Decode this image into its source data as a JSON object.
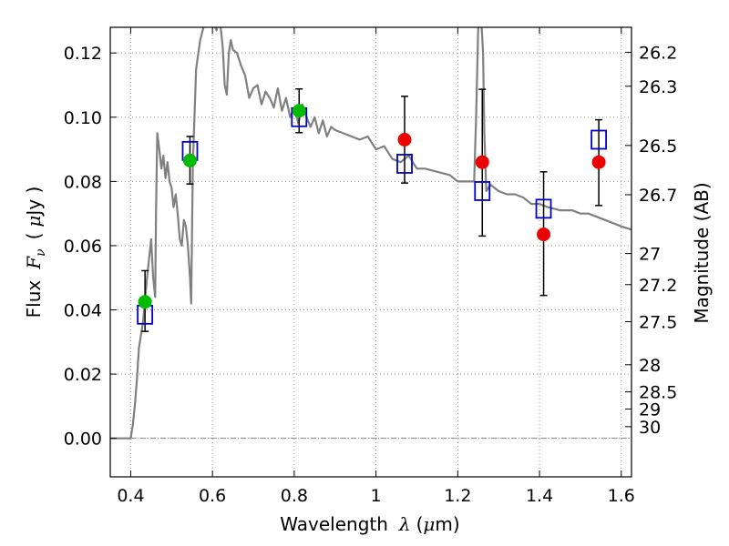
{
  "chart_data": {
    "type": "scatter",
    "xlabel_text": "Wavelength",
    "xlabel_symbol": "λ",
    "xlabel_unit_open": "(",
    "xlabel_unit_mu": "μ",
    "xlabel_unit_rest": "m)",
    "ylabel_text": "Flux",
    "ylabel_symbol": "F",
    "ylabel_sub": "ν",
    "ylabel_unit_open": "(",
    "ylabel_unit_mu": "μ",
    "ylabel_unit_rest": "Jy )",
    "y2label": "Magnitude (AB)",
    "xlim": [
      0.35,
      1.625
    ],
    "ylim": [
      -0.012,
      0.128
    ],
    "grid": true,
    "x_ticks": [
      {
        "value": 0.4,
        "label": "0.4"
      },
      {
        "value": 0.6,
        "label": "0.6"
      },
      {
        "value": 0.8,
        "label": "0.8"
      },
      {
        "value": 1.0,
        "label": "1"
      },
      {
        "value": 1.2,
        "label": "1.2"
      },
      {
        "value": 1.4,
        "label": "1.4"
      },
      {
        "value": 1.6,
        "label": "1.6"
      }
    ],
    "y_ticks": [
      {
        "value": 0.0,
        "label": "0.00"
      },
      {
        "value": 0.02,
        "label": "0.02"
      },
      {
        "value": 0.04,
        "label": "0.04"
      },
      {
        "value": 0.06,
        "label": "0.06"
      },
      {
        "value": 0.08,
        "label": "0.08"
      },
      {
        "value": 0.1,
        "label": "0.10"
      },
      {
        "value": 0.12,
        "label": "0.12"
      }
    ],
    "mag_ticks": [
      {
        "mag": 26.2,
        "label": "26.2"
      },
      {
        "mag": 26.3,
        "label": "26.3"
      },
      {
        "mag": 26.5,
        "label": "26.5"
      },
      {
        "mag": 26.7,
        "label": "26.7"
      },
      {
        "mag": 27.0,
        "label": "27"
      },
      {
        "mag": 27.2,
        "label": "27.2"
      },
      {
        "mag": 27.5,
        "label": "27.5"
      },
      {
        "mag": 28.0,
        "label": "28"
      },
      {
        "mag": 28.5,
        "label": "28.5"
      },
      {
        "mag": 29.0,
        "label": "29"
      },
      {
        "mag": 30.0,
        "label": "30"
      }
    ],
    "colors": {
      "model": "#808080",
      "model_photometry": "#0000cc",
      "detected": "#00bb00",
      "other": "#ee0000",
      "errorbar": "#000000",
      "grid": "#888888"
    },
    "model_spectrum": {
      "x": [
        0.35,
        0.4,
        0.405,
        0.41,
        0.415,
        0.42,
        0.425,
        0.43,
        0.435,
        0.44,
        0.445,
        0.45,
        0.455,
        0.46,
        0.462,
        0.465,
        0.47,
        0.475,
        0.48,
        0.485,
        0.49,
        0.495,
        0.5,
        0.505,
        0.51,
        0.515,
        0.52,
        0.525,
        0.53,
        0.535,
        0.54,
        0.545,
        0.548,
        0.552,
        0.56,
        0.57,
        0.58,
        0.59,
        0.6,
        0.61,
        0.615,
        0.62,
        0.625,
        0.63,
        0.635,
        0.64,
        0.645,
        0.65,
        0.66,
        0.67,
        0.68,
        0.69,
        0.7,
        0.71,
        0.72,
        0.73,
        0.74,
        0.75,
        0.76,
        0.77,
        0.78,
        0.79,
        0.8,
        0.81,
        0.82,
        0.83,
        0.84,
        0.85,
        0.86,
        0.87,
        0.88,
        0.89,
        0.9,
        0.92,
        0.94,
        0.96,
        0.98,
        1.0,
        1.02,
        1.04,
        1.06,
        1.08,
        1.1,
        1.12,
        1.15,
        1.18,
        1.2,
        1.22,
        1.24,
        1.245,
        1.25,
        1.255,
        1.258,
        1.262,
        1.265,
        1.27,
        1.275,
        1.28,
        1.3,
        1.32,
        1.34,
        1.36,
        1.38,
        1.4,
        1.42,
        1.45,
        1.48,
        1.5,
        1.52,
        1.54,
        1.56,
        1.58,
        1.6,
        1.625
      ],
      "y": [
        0.0,
        0.0,
        0.004,
        0.01,
        0.018,
        0.028,
        0.032,
        0.036,
        0.043,
        0.05,
        0.056,
        0.062,
        0.05,
        0.044,
        0.07,
        0.095,
        0.09,
        0.084,
        0.088,
        0.081,
        0.086,
        0.08,
        0.078,
        0.072,
        0.076,
        0.07,
        0.062,
        0.06,
        0.068,
        0.066,
        0.06,
        0.05,
        0.042,
        0.085,
        0.115,
        0.124,
        0.129,
        0.132,
        0.13,
        0.127,
        0.13,
        0.128,
        0.122,
        0.11,
        0.107,
        0.12,
        0.124,
        0.121,
        0.12,
        0.116,
        0.113,
        0.106,
        0.109,
        0.11,
        0.104,
        0.108,
        0.106,
        0.103,
        0.109,
        0.102,
        0.106,
        0.1,
        0.103,
        0.098,
        0.104,
        0.1,
        0.097,
        0.1,
        0.095,
        0.099,
        0.094,
        0.097,
        0.096,
        0.095,
        0.094,
        0.093,
        0.094,
        0.09,
        0.091,
        0.087,
        0.086,
        0.088,
        0.084,
        0.084,
        0.083,
        0.082,
        0.08,
        0.08,
        0.08,
        0.1,
        0.128,
        0.135,
        0.129,
        0.12,
        0.095,
        0.077,
        0.078,
        0.079,
        0.077,
        0.076,
        0.076,
        0.075,
        0.073,
        0.073,
        0.072,
        0.071,
        0.071,
        0.07,
        0.07,
        0.069,
        0.068,
        0.067,
        0.066,
        0.065
      ]
    },
    "series": [
      {
        "marker": "square",
        "points": [
          {
            "x": 0.435,
            "y": 0.0385
          },
          {
            "x": 0.545,
            "y": 0.0895
          },
          {
            "x": 0.812,
            "y": 0.1
          },
          {
            "x": 1.07,
            "y": 0.0855
          },
          {
            "x": 1.26,
            "y": 0.077
          },
          {
            "x": 1.41,
            "y": 0.0715
          },
          {
            "x": 1.545,
            "y": 0.093
          }
        ]
      },
      {
        "marker": "circle",
        "points": [
          {
            "x": 0.435,
            "y": 0.0425,
            "err_lo": 0.0092,
            "err_hi": 0.0097
          },
          {
            "x": 0.545,
            "y": 0.0865,
            "err_lo": 0.0073,
            "err_hi": 0.0075
          },
          {
            "x": 0.812,
            "y": 0.102,
            "err_lo": 0.0068,
            "err_hi": 0.0068
          }
        ]
      },
      {
        "marker": "circle",
        "points": [
          {
            "x": 1.07,
            "y": 0.093,
            "err_lo": 0.0135,
            "err_hi": 0.0135
          },
          {
            "x": 1.26,
            "y": 0.086,
            "err_lo": 0.023,
            "err_hi": 0.0227
          },
          {
            "x": 1.41,
            "y": 0.0635,
            "err_lo": 0.019,
            "err_hi": 0.0195
          },
          {
            "x": 1.545,
            "y": 0.086,
            "err_lo": 0.0135,
            "err_hi": 0.0132
          }
        ]
      }
    ]
  }
}
